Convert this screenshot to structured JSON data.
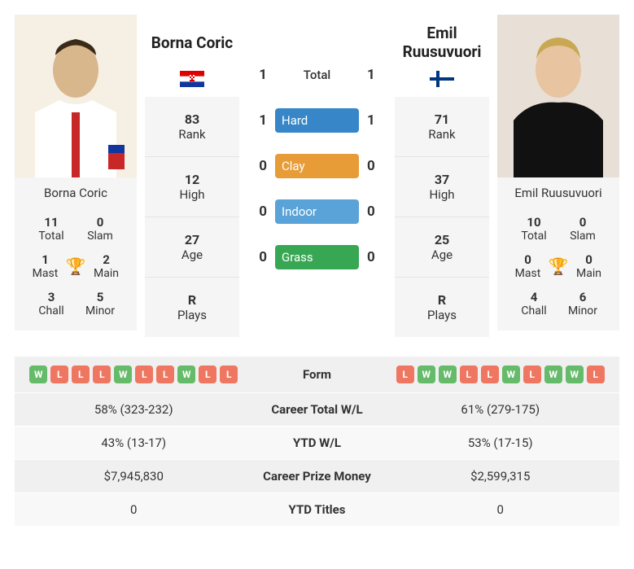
{
  "colors": {
    "win": "#66bb6a",
    "loss": "#ef7761",
    "trophy": "#61A2DB",
    "hard": "#3787C8",
    "clay": "#E79C37",
    "indoor": "#5AA3D8",
    "grass": "#38A754"
  },
  "p1": {
    "name": "Borna Coric",
    "flag": "croatia",
    "photo_bg": "#f0e5d4",
    "stats": {
      "rank": "83",
      "rank_lbl": "Rank",
      "high": "12",
      "high_lbl": "High",
      "age": "27",
      "age_lbl": "Age",
      "plays": "R",
      "plays_lbl": "Plays"
    },
    "titles": {
      "total_val": "11",
      "total_lbl": "Total",
      "slam_val": "0",
      "slam_lbl": "Slam",
      "mast_val": "1",
      "mast_lbl": "Mast",
      "main_val": "2",
      "main_lbl": "Main",
      "chall_val": "3",
      "chall_lbl": "Chall",
      "minor_val": "5",
      "minor_lbl": "Minor"
    }
  },
  "p2": {
    "name": "Emil Ruusuvuori",
    "flag": "finland",
    "photo_bg": "#111111",
    "stats": {
      "rank": "71",
      "rank_lbl": "Rank",
      "high": "37",
      "high_lbl": "High",
      "age": "25",
      "age_lbl": "Age",
      "plays": "R",
      "plays_lbl": "Plays"
    },
    "titles": {
      "total_val": "10",
      "total_lbl": "Total",
      "slam_val": "0",
      "slam_lbl": "Slam",
      "mast_val": "0",
      "mast_lbl": "Mast",
      "main_val": "0",
      "main_lbl": "Main",
      "chall_val": "4",
      "chall_lbl": "Chall",
      "minor_val": "6",
      "minor_lbl": "Minor"
    }
  },
  "h2h": {
    "rows": [
      {
        "l": "1",
        "mid": "Total",
        "r": "1",
        "style": "text"
      },
      {
        "l": "1",
        "mid": "Hard",
        "r": "1",
        "style": "box",
        "color": "hard"
      },
      {
        "l": "0",
        "mid": "Clay",
        "r": "0",
        "style": "box",
        "color": "clay"
      },
      {
        "l": "0",
        "mid": "Indoor",
        "r": "0",
        "style": "box",
        "color": "indoor"
      },
      {
        "l": "0",
        "mid": "Grass",
        "r": "0",
        "style": "box",
        "color": "grass"
      }
    ]
  },
  "compare": {
    "form_lbl": "Form",
    "rows": [
      {
        "mid": "Career Total W/L",
        "l": "58% (323-232)",
        "r": "61% (279-175)"
      },
      {
        "mid": "YTD W/L",
        "l": "43% (13-17)",
        "r": "53% (17-15)"
      },
      {
        "mid": "Career Prize Money",
        "l": "$7,945,830",
        "r": "$2,599,315"
      },
      {
        "mid": "YTD Titles",
        "l": "0",
        "r": "0"
      }
    ],
    "form_p1": [
      "W",
      "L",
      "L",
      "L",
      "W",
      "L",
      "L",
      "W",
      "L",
      "L"
    ],
    "form_p2": [
      "L",
      "W",
      "W",
      "L",
      "L",
      "W",
      "L",
      "W",
      "W",
      "L"
    ]
  }
}
